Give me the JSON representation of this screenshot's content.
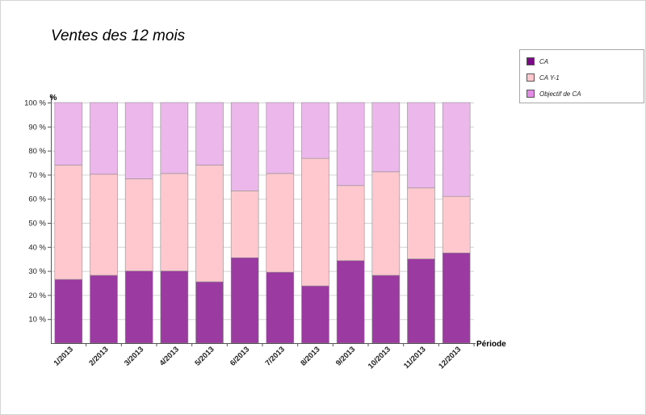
{
  "chart_data": {
    "type": "bar",
    "stacked": "percent",
    "title": "Ventes des 12 mois",
    "xlabel": "Période",
    "ylabel": "%",
    "ylim": [
      0,
      100
    ],
    "yticks": [
      "10 %",
      "20 %",
      "30 %",
      "40 %",
      "50 %",
      "60 %",
      "70 %",
      "80 %",
      "90 %",
      "100 %"
    ],
    "grid": true,
    "legend_position": "top-right",
    "categories": [
      "1/2013",
      "2/2013",
      "3/2013",
      "4/2013",
      "5/2013",
      "6/2013",
      "7/2013",
      "8/2013",
      "9/2013",
      "10/2013",
      "11/2013",
      "12/2013"
    ],
    "series": [
      {
        "name": "CA",
        "color": "#9b3aa0",
        "values": [
          26.5,
          28.2,
          30,
          30,
          25.5,
          35.5,
          29.5,
          23.8,
          34.3,
          28.2,
          35,
          37.5
        ]
      },
      {
        "name": "CA Y-1",
        "color": "#ffc8cf",
        "values": [
          47.5,
          42,
          38.3,
          40.5,
          48.5,
          27.8,
          41,
          53,
          31.2,
          43,
          29.5,
          23.5
        ]
      },
      {
        "name": "Objectif de CA",
        "color": "#ecb8ec",
        "values": [
          26,
          29.8,
          31.7,
          29.5,
          26,
          36.7,
          29.5,
          23.2,
          34.5,
          28.8,
          35.5,
          39
        ]
      }
    ]
  },
  "legend": {
    "items": [
      {
        "label": "CA",
        "color": "#7a0a86"
      },
      {
        "label": "CA Y-1",
        "color": "#ffc8cf"
      },
      {
        "label": "Objectif de CA",
        "color": "#e38ce5"
      }
    ]
  }
}
